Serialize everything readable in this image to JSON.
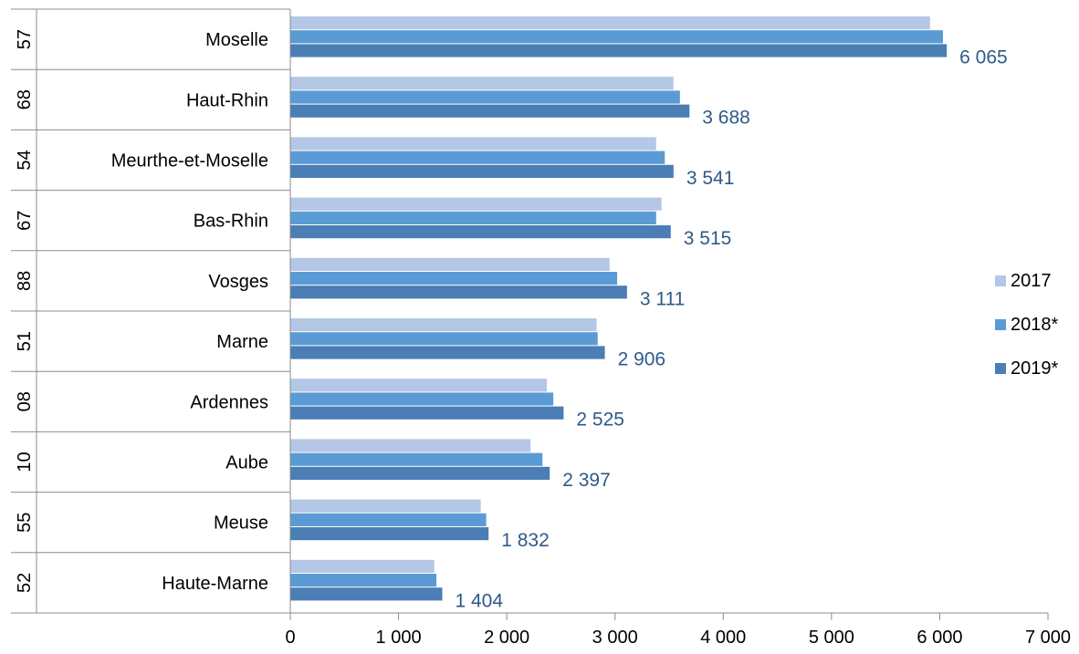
{
  "chart_data": {
    "type": "bar",
    "orientation": "horizontal",
    "categories": [
      {
        "code": "57",
        "name": "Moselle"
      },
      {
        "code": "68",
        "name": "Haut-Rhin"
      },
      {
        "code": "54",
        "name": "Meurthe-et-Moselle"
      },
      {
        "code": "67",
        "name": "Bas-Rhin"
      },
      {
        "code": "88",
        "name": "Vosges"
      },
      {
        "code": "51",
        "name": "Marne"
      },
      {
        "code": "08",
        "name": "Ardennes"
      },
      {
        "code": "10",
        "name": "Aube"
      },
      {
        "code": "55",
        "name": "Meuse"
      },
      {
        "code": "52",
        "name": "Haute-Marne"
      }
    ],
    "series": [
      {
        "name": "2017",
        "color": "#b4c7e7",
        "values": [
          5910,
          3540,
          3380,
          3430,
          2950,
          2830,
          2370,
          2220,
          1760,
          1330
        ]
      },
      {
        "name": "2018*",
        "color": "#5b9bd5",
        "values": [
          6030,
          3600,
          3460,
          3380,
          3020,
          2840,
          2430,
          2330,
          1810,
          1350
        ]
      },
      {
        "name": "2019*",
        "color": "#4a7eb5",
        "values": [
          6065,
          3688,
          3541,
          3515,
          3111,
          2906,
          2525,
          2397,
          1832,
          1404
        ]
      }
    ],
    "data_labels": [
      "6 065",
      "3 688",
      "3 541",
      "3 515",
      "3 111",
      "2 906",
      "2 525",
      "2 397",
      "1 832",
      "1 404"
    ],
    "data_label_color": "#2e5a88",
    "xlim": [
      0,
      7000
    ],
    "xticks": [
      0,
      1000,
      2000,
      3000,
      4000,
      5000,
      6000,
      7000
    ],
    "xtick_labels": [
      "0",
      "1 000",
      "2 000",
      "3 000",
      "4 000",
      "5 000",
      "6 000",
      "7 000"
    ],
    "grid": false,
    "legend_position": "right"
  }
}
